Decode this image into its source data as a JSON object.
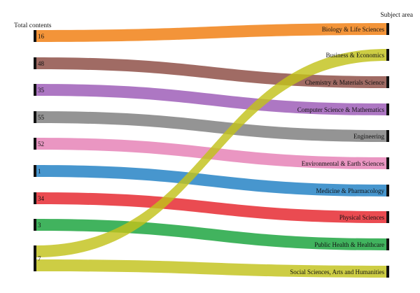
{
  "chart_data": {
    "type": "sankey",
    "left_header": "Total contents",
    "right_header": "Subject area",
    "targets": [
      "Biology & Life Sciences",
      "Business & Economics",
      "Chemistry & Materials Science",
      "Computer Science & Mathematics",
      "Engineering",
      "Environmental & Earth Sciences",
      "Medicine & Pharmacology",
      "Physical Sciences",
      "Public Health & Healthcare",
      "Social Sciences, Arts and Humanities"
    ],
    "flows": [
      {
        "source": "16",
        "target": "Biology & Life Sciences",
        "color": "#f07d0e"
      },
      {
        "source": "48",
        "target": "Chemistry & Materials Science",
        "color": "#8b4a42"
      },
      {
        "source": "35",
        "target": "Computer Science & Mathematics",
        "color": "#9b59b6"
      },
      {
        "source": "55",
        "target": "Engineering",
        "color": "#7d7d7d"
      },
      {
        "source": "52",
        "target": "Environmental & Earth Sciences",
        "color": "#e57fb4"
      },
      {
        "source": "1",
        "target": "Medicine & Pharmacology",
        "color": "#1f7fc3"
      },
      {
        "source": "34",
        "target": "Physical Sciences",
        "color": "#e5232b"
      },
      {
        "source": "3",
        "target": "Public Health & Healthcare",
        "color": "#17a23a"
      },
      {
        "source": "7",
        "target": "Business & Economics",
        "color": "#c2c21b"
      },
      {
        "source": "7",
        "target": "Social Sciences, Arts and Humanities",
        "color": "#c2c21b"
      }
    ],
    "sources": [
      "16",
      "48",
      "35",
      "55",
      "52",
      "1",
      "34",
      "3",
      "7"
    ]
  }
}
